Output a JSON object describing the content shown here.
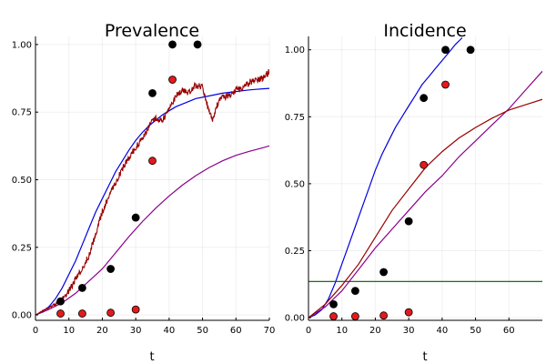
{
  "chart_data": [
    {
      "type": "line",
      "title": "Prevalence",
      "xlabel": "t",
      "ylabel": "",
      "xlim": [
        0,
        70
      ],
      "ylim": [
        -0.02,
        1.03
      ],
      "xticks": [
        0,
        10,
        20,
        30,
        40,
        50,
        60,
        70
      ],
      "xtick_labels": [
        "0",
        "10",
        "20",
        "30",
        "40",
        "50",
        "60",
        "70"
      ],
      "yticks": [
        0,
        0.25,
        0.5,
        0.75,
        1.0
      ],
      "ytick_labels": [
        "0.00",
        "0.25",
        "0.50",
        "0.75",
        "1.00"
      ],
      "grid": true,
      "legend": "none",
      "series": [
        {
          "name": "blue curve",
          "kind": "line",
          "color": "#0000e0",
          "x": [
            0,
            2,
            4,
            6,
            8,
            10,
            12,
            14,
            16,
            18,
            20,
            22,
            24,
            26,
            28,
            30,
            32,
            34,
            36,
            38,
            40,
            42,
            44,
            46,
            48,
            50,
            52,
            54,
            56,
            58,
            60,
            62,
            64,
            66,
            68,
            70
          ],
          "y": [
            0.0,
            0.01,
            0.03,
            0.06,
            0.1,
            0.15,
            0.2,
            0.26,
            0.32,
            0.38,
            0.43,
            0.48,
            0.53,
            0.57,
            0.61,
            0.645,
            0.675,
            0.7,
            0.72,
            0.74,
            0.755,
            0.77,
            0.78,
            0.79,
            0.8,
            0.805,
            0.81,
            0.815,
            0.82,
            0.823,
            0.826,
            0.829,
            0.832,
            0.834,
            0.836,
            0.838
          ]
        },
        {
          "name": "purple curve",
          "kind": "line",
          "color": "#8b008b",
          "x": [
            0,
            4,
            8,
            12,
            16,
            20,
            24,
            28,
            32,
            36,
            40,
            44,
            48,
            52,
            56,
            60,
            64,
            68,
            70
          ],
          "y": [
            0.0,
            0.02,
            0.045,
            0.08,
            0.125,
            0.17,
            0.23,
            0.29,
            0.345,
            0.395,
            0.44,
            0.48,
            0.515,
            0.545,
            0.57,
            0.59,
            0.605,
            0.618,
            0.625
          ]
        },
        {
          "name": "dark red stochastic path",
          "kind": "noisy-line",
          "color": "#990000",
          "noise": 0.012,
          "x": [
            0,
            3,
            6,
            8,
            10,
            12,
            14,
            16,
            18,
            20,
            22,
            24,
            26,
            28,
            30,
            32,
            34,
            36,
            38,
            40,
            42,
            44,
            46,
            48,
            50,
            52,
            53,
            55,
            58,
            60,
            62,
            64,
            66,
            68,
            70
          ],
          "y": [
            0.0,
            0.02,
            0.04,
            0.06,
            0.09,
            0.13,
            0.17,
            0.22,
            0.3,
            0.38,
            0.44,
            0.49,
            0.54,
            0.58,
            0.62,
            0.65,
            0.7,
            0.73,
            0.72,
            0.76,
            0.81,
            0.83,
            0.82,
            0.85,
            0.84,
            0.75,
            0.72,
            0.8,
            0.81,
            0.83,
            0.84,
            0.86,
            0.87,
            0.875,
            0.9
          ]
        },
        {
          "name": "black markers",
          "kind": "scatter",
          "color": "#000000",
          "x": [
            7.5,
            14,
            22.5,
            30,
            35,
            41,
            48.5
          ],
          "y": [
            0.05,
            0.1,
            0.17,
            0.36,
            0.82,
            1.0,
            1.0
          ]
        },
        {
          "name": "red markers",
          "kind": "scatter",
          "color": "#e31a1c",
          "x": [
            7.5,
            14,
            22.5,
            30,
            35,
            41
          ],
          "y": [
            0.005,
            0.005,
            0.008,
            0.02,
            0.57,
            0.87
          ]
        }
      ]
    },
    {
      "type": "line",
      "title": "Incidence",
      "xlabel": "t",
      "ylabel": "",
      "xlim": [
        0,
        70
      ],
      "ylim": [
        -0.01,
        1.05
      ],
      "xticks": [
        0,
        10,
        20,
        30,
        40,
        50,
        60
      ],
      "xtick_labels": [
        "0",
        "10",
        "20",
        "30",
        "40",
        "50",
        "60"
      ],
      "yticks": [
        0,
        0.25,
        0.5,
        0.75,
        1.0
      ],
      "ytick_labels": [
        "0.00",
        "0.25",
        "0.50",
        "0.75",
        "1.00"
      ],
      "grid": true,
      "legend": "none",
      "series": [
        {
          "name": "blue curve",
          "kind": "line",
          "color": "#0000e0",
          "x": [
            0,
            2,
            4,
            6,
            8,
            10,
            12,
            14,
            16,
            18,
            20,
            22,
            24,
            26,
            28,
            30,
            32,
            34,
            36,
            38,
            40,
            42,
            44,
            46
          ],
          "y": [
            0.0,
            0.01,
            0.03,
            0.07,
            0.13,
            0.2,
            0.27,
            0.34,
            0.41,
            0.48,
            0.55,
            0.61,
            0.66,
            0.71,
            0.75,
            0.79,
            0.83,
            0.87,
            0.9,
            0.93,
            0.96,
            0.99,
            1.02,
            1.045
          ]
        },
        {
          "name": "green horizontal line",
          "kind": "line",
          "color": "#005a00",
          "x": [
            0,
            70
          ],
          "y": [
            0.135,
            0.135
          ]
        },
        {
          "name": "purple curve",
          "kind": "line",
          "color": "#8b008b",
          "x": [
            0,
            5,
            10,
            15,
            20,
            25,
            30,
            35,
            40,
            45,
            50,
            55,
            60,
            65,
            70
          ],
          "y": [
            0.0,
            0.04,
            0.1,
            0.18,
            0.26,
            0.33,
            0.4,
            0.47,
            0.53,
            0.6,
            0.66,
            0.72,
            0.78,
            0.85,
            0.92
          ]
        },
        {
          "name": "dark red curve",
          "kind": "line",
          "color": "#990000",
          "x": [
            0,
            5,
            10,
            15,
            20,
            25,
            30,
            35,
            40,
            45,
            50,
            55,
            60,
            65,
            70
          ],
          "y": [
            0.0,
            0.05,
            0.12,
            0.2,
            0.3,
            0.4,
            0.48,
            0.56,
            0.62,
            0.67,
            0.71,
            0.745,
            0.775,
            0.795,
            0.815
          ]
        },
        {
          "name": "black markers",
          "kind": "scatter",
          "color": "#000000",
          "x": [
            7.5,
            14,
            22.5,
            30,
            34.5,
            41,
            48.5
          ],
          "y": [
            0.05,
            0.1,
            0.17,
            0.36,
            0.82,
            1.0,
            1.0
          ]
        },
        {
          "name": "red markers",
          "kind": "scatter",
          "color": "#e31a1c",
          "x": [
            7.5,
            14,
            22.5,
            30,
            34.5,
            41
          ],
          "y": [
            0.005,
            0.005,
            0.008,
            0.02,
            0.57,
            0.87
          ]
        }
      ]
    }
  ]
}
